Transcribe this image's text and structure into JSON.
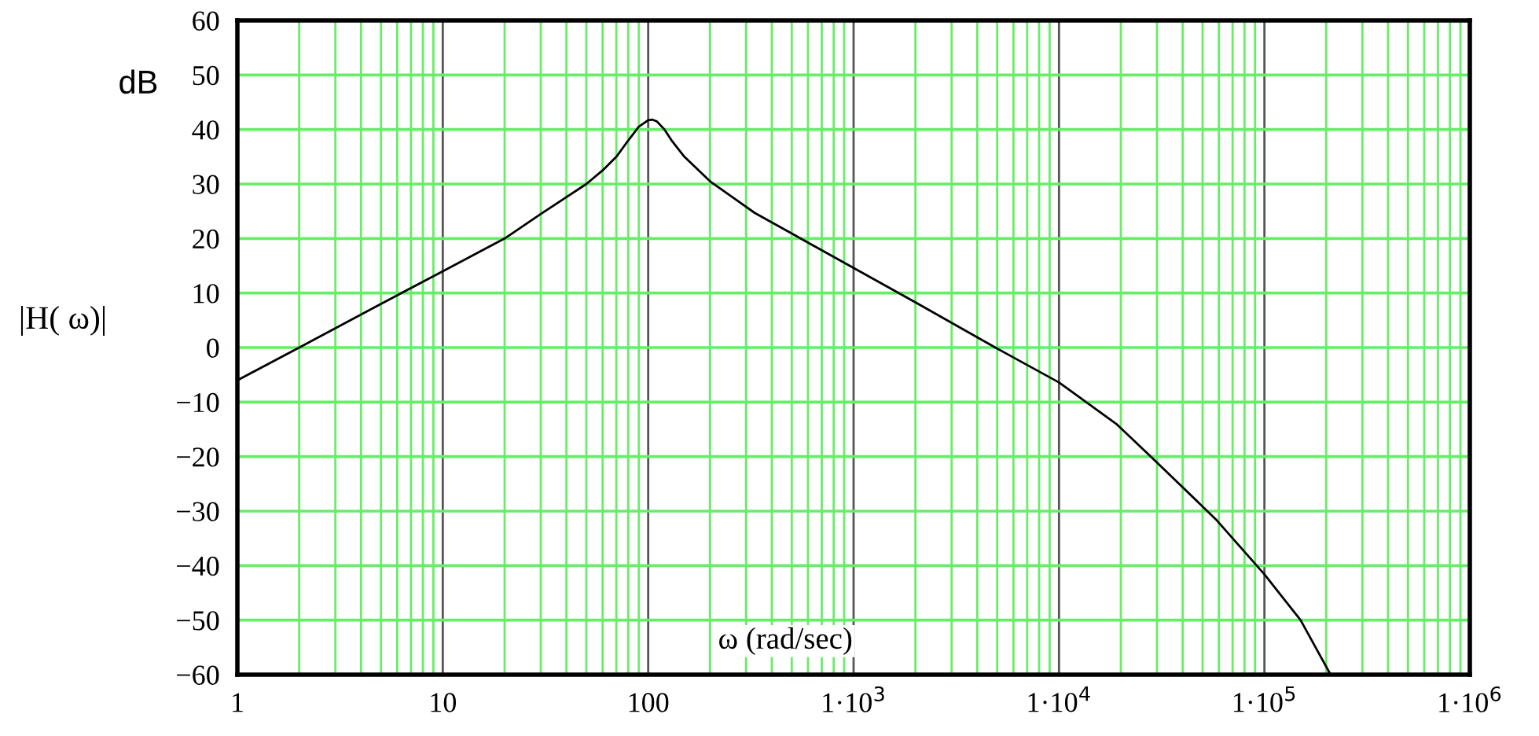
{
  "chart_data": {
    "type": "line",
    "xlabel": "ω (rad/sec)",
    "ylabel": "|H( ω)|",
    "annotations": [
      "dB"
    ],
    "x": [
      1,
      2,
      5,
      10,
      20,
      30,
      50,
      60,
      70,
      80,
      90,
      100,
      105,
      110,
      120,
      130,
      150,
      200,
      330,
      1000,
      2000,
      4900,
      10000,
      19000,
      28000,
      58000,
      100000,
      150000,
      210000
    ],
    "series": [
      {
        "color": "#000000",
        "values": [
          -6,
          0,
          8,
          14,
          20,
          24.5,
          30,
          32.5,
          35,
          38,
          40.5,
          41.7,
          41.8,
          41.5,
          40,
          38,
          35,
          30.5,
          24.7,
          14.6,
          8.3,
          0,
          -6.4,
          -14,
          -20,
          -31.5,
          -41.6,
          -50,
          -60
        ]
      }
    ],
    "log": "x",
    "xlim": [
      1,
      1000000
    ],
    "ylim": [
      -60,
      60
    ],
    "xticks": [
      1,
      10,
      100,
      {
        "value": 1000,
        "label": "1·10$^{3}$"
      },
      {
        "value": 10000,
        "label": "1·10$^{4}$"
      },
      {
        "value": 100000,
        "label": "1·10$^{5}$"
      },
      {
        "value": 1000000,
        "label": "1·10$^{6}$"
      },
      {
        "value": 2,
        "label": null
      },
      {
        "value": 3,
        "label": null
      },
      {
        "value": 4,
        "label": null
      },
      {
        "value": 5,
        "label": null
      },
      {
        "value": 6,
        "label": null
      },
      {
        "value": 7,
        "label": null
      },
      {
        "value": 8,
        "label": null
      },
      {
        "value": 9,
        "label": null
      },
      {
        "value": 20,
        "label": null
      },
      {
        "value": 30,
        "label": null
      },
      {
        "value": 40,
        "label": null
      },
      {
        "value": 50,
        "label": null
      },
      {
        "value": 60,
        "label": null
      },
      {
        "value": 70,
        "label": null
      },
      {
        "value": 80,
        "label": null
      },
      {
        "value": 90,
        "label": null
      },
      {
        "value": 200,
        "label": null
      },
      {
        "value": 300,
        "label": null
      },
      {
        "value": 400,
        "label": null
      },
      {
        "value": 500,
        "label": null
      },
      {
        "value": 600,
        "label": null
      },
      {
        "value": 700,
        "label": null
      },
      {
        "value": 800,
        "label": null
      },
      {
        "value": 900,
        "label": null
      },
      {
        "value": 2000,
        "label": null
      },
      {
        "value": 3000,
        "label": null
      },
      {
        "value": 4000,
        "label": null
      },
      {
        "value": 5000,
        "label": null
      },
      {
        "value": 6000,
        "label": null
      },
      {
        "value": 7000,
        "label": null
      },
      {
        "value": 8000,
        "label": null
      },
      {
        "value": 9000,
        "label": null
      },
      {
        "value": 20000,
        "label": null
      },
      {
        "value": 30000,
        "label": null
      },
      {
        "value": 40000,
        "label": null
      },
      {
        "value": 50000,
        "label": null
      },
      {
        "value": 60000,
        "label": null
      },
      {
        "value": 70000,
        "label": null
      },
      {
        "value": 80000,
        "label": null
      },
      {
        "value": 90000,
        "label": null
      },
      {
        "value": 200000,
        "label": null
      },
      {
        "value": 300000,
        "label": null
      },
      {
        "value": 400000,
        "label": null
      },
      {
        "value": 500000,
        "label": null
      },
      {
        "value": 600000,
        "label": null
      },
      {
        "value": 700000,
        "label": null
      },
      {
        "value": 800000,
        "label": null
      },
      {
        "value": 900000,
        "label": null
      }
    ],
    "yticks": [
      -60,
      -50,
      -40,
      -30,
      -20,
      -10,
      0,
      10,
      20,
      30,
      40,
      50,
      60
    ],
    "grid": true,
    "line_style": "solid"
  }
}
